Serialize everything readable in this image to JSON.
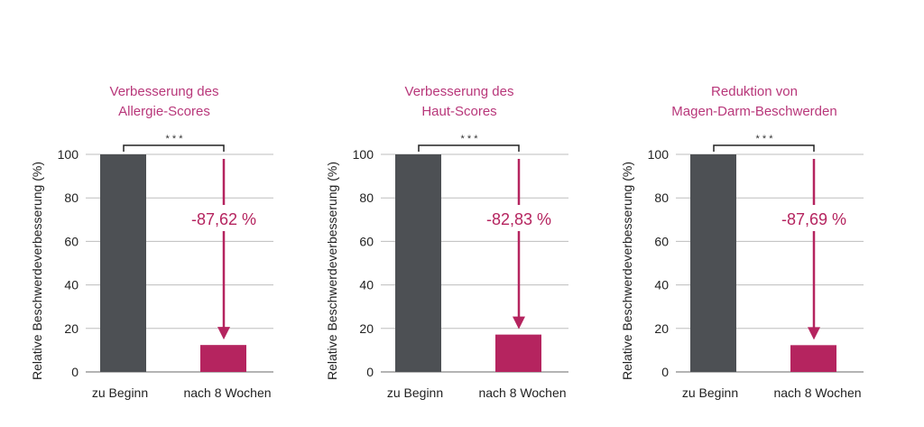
{
  "colors": {
    "baseline_bar": "#4d5054",
    "after_bar": "#b5245f",
    "title": "#b8377a",
    "annotation": "#b5245f",
    "grid": "#bdbdbd"
  },
  "chart_data": [
    {
      "type": "bar",
      "title": "Verbesserung des\nAllergie-Scores",
      "ylabel": "Relative Beschwerdeverbesserung (%)",
      "categories": [
        "zu Beginn",
        "nach 8 Wochen"
      ],
      "values": [
        100,
        12.38
      ],
      "ylim": [
        0,
        100
      ],
      "yticks": [
        0,
        20,
        40,
        60,
        80,
        100
      ],
      "grid": true,
      "annotation": "-87,62 %",
      "significance": "* * *"
    },
    {
      "type": "bar",
      "title": "Verbesserung des\nHaut-Scores",
      "ylabel": "Relative Beschwerdeverbesserung (%)",
      "categories": [
        "zu Beginn",
        "nach 8 Wochen"
      ],
      "values": [
        100,
        17.17
      ],
      "ylim": [
        0,
        100
      ],
      "yticks": [
        0,
        20,
        40,
        60,
        80,
        100
      ],
      "grid": true,
      "annotation": "-82,83 %",
      "significance": "* * *"
    },
    {
      "type": "bar",
      "title": "Reduktion von\nMagen-Darm-Beschwerden",
      "ylabel": "Relative Beschwerdeverbesserung (%)",
      "categories": [
        "zu Beginn",
        "nach 8 Wochen"
      ],
      "values": [
        100,
        12.31
      ],
      "ylim": [
        0,
        100
      ],
      "yticks": [
        0,
        20,
        40,
        60,
        80,
        100
      ],
      "grid": true,
      "annotation": "-87,69 %",
      "significance": "* * *"
    }
  ]
}
